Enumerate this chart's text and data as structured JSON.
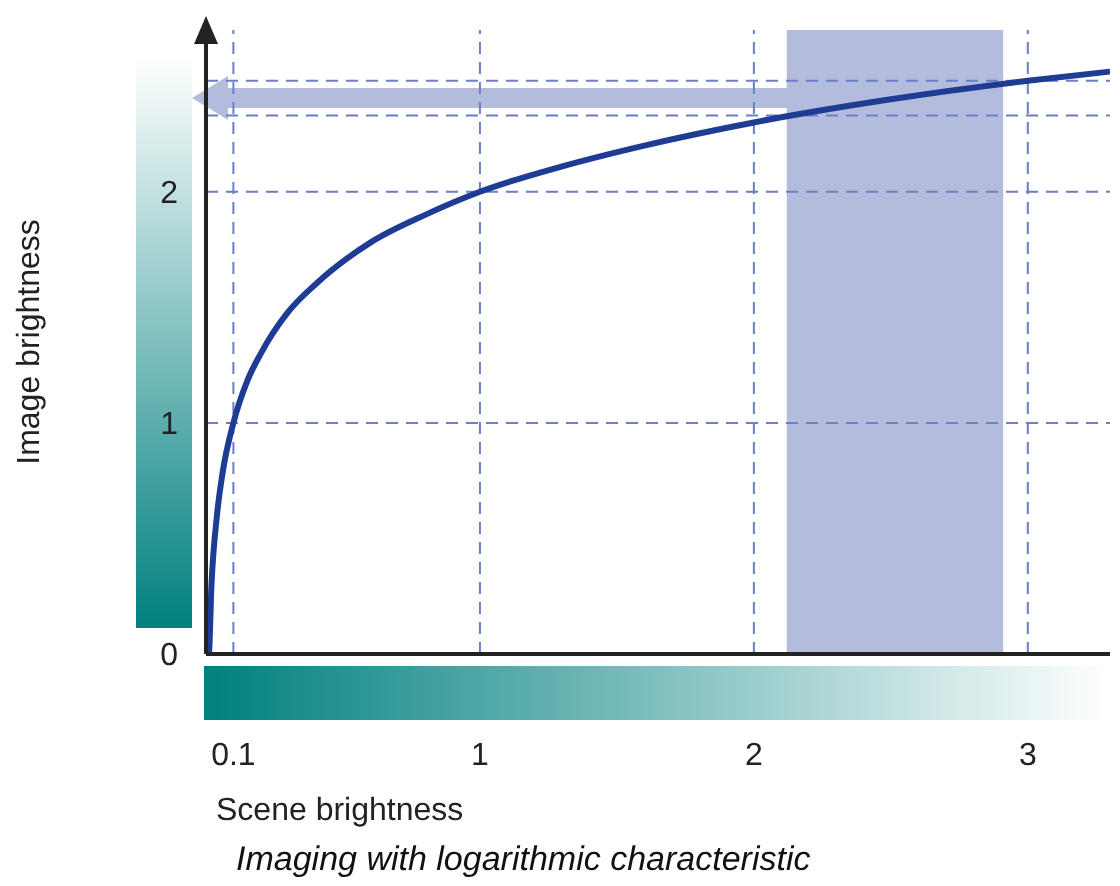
{
  "chart_data": {
    "type": "line",
    "xlabel": "Scene brightness",
    "ylabel": "Image brightness",
    "annotations": [
      "Imaging with logarithmic characteristic"
    ],
    "x": [
      0,
      0.01,
      0.02,
      0.04,
      0.06,
      0.1,
      0.15,
      0.2,
      0.3,
      0.4,
      0.6,
      0.8,
      1,
      1.3,
      1.6,
      2,
      2.5,
      3,
      3.3
    ],
    "series": [
      {
        "color": "#1f3c94",
        "values": [
          0,
          0,
          0.3,
          0.6,
          0.78,
          1,
          1.18,
          1.3,
          1.48,
          1.6,
          1.78,
          1.9,
          2,
          2.11,
          2.2,
          2.3,
          2.4,
          2.48,
          2.52
        ]
      }
    ],
    "xlim": [
      0,
      3.3
    ],
    "ylim": [
      0,
      2.7
    ],
    "xticks": [
      0.1,
      1,
      2,
      3
    ],
    "yticks": [
      0,
      1,
      2
    ],
    "grid": false,
    "legend": false,
    "marker": "none",
    "line_style": "solid",
    "ref_lines": [
      {
        "axis": "x",
        "value": 0.1,
        "color": "#6a7fc8",
        "line_style": "dashed"
      },
      {
        "axis": "x",
        "value": 1,
        "color": "#6a7fc8",
        "line_style": "dashed"
      },
      {
        "axis": "x",
        "value": 2,
        "color": "#6a7fc8",
        "line_style": "dashed"
      },
      {
        "axis": "x",
        "value": 3,
        "color": "#6a7fc8",
        "line_style": "dashed"
      },
      {
        "axis": "y",
        "value": 1,
        "color": "#6a7fc8",
        "line_style": "dashed"
      },
      {
        "axis": "y",
        "value": 2,
        "color": "#6a7fc8",
        "line_style": "dashed"
      },
      {
        "axis": "y",
        "value": 2.33,
        "color": "#6a7fc8",
        "line_style": "dashed"
      },
      {
        "axis": "y",
        "value": 2.48,
        "color": "#6a7fc8",
        "line_style": "dashed"
      }
    ],
    "bands": [
      {
        "axis": "x",
        "from": 2.12,
        "to": 2.91,
        "color": "#b3bcdc"
      }
    ]
  }
}
